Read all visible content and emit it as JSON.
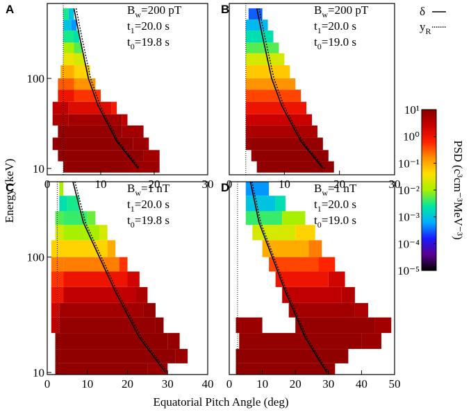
{
  "chart_data": [
    {
      "type": "heatmap",
      "label": "A",
      "annotation": [
        {
          "base": "B",
          "sub": "w",
          "rest": "=200 pT"
        },
        {
          "base": "t",
          "sub": "1",
          "rest": "=20.0 s"
        },
        {
          "base": "t",
          "sub": "0",
          "rest": "=19.8 s"
        }
      ],
      "xlim": [
        0,
        30
      ],
      "xticks": [
        0,
        10,
        20,
        30
      ],
      "ylim": [
        8.5,
        680
      ],
      "yscale": "log",
      "yticks": [
        10,
        100
      ],
      "loss_cone": 3,
      "rows": [
        [
          450,
          600,
          [
            [
              3,
              4,
              0.003
            ],
            [
              4,
              5,
              0.001
            ]
          ]
        ],
        [
          340,
          450,
          [
            [
              3,
              4.5,
              0.001
            ],
            [
              4.5,
              5.5,
              0.0005
            ]
          ]
        ],
        [
          250,
          340,
          [
            [
              3,
              5,
              0.003
            ],
            [
              5,
              6,
              0.002
            ]
          ]
        ],
        [
          190,
          250,
          [
            [
              3,
              5,
              0.01
            ],
            [
              5,
              6.5,
              0.005
            ]
          ]
        ],
        [
          140,
          190,
          [
            [
              3,
              5,
              0.03
            ],
            [
              5,
              7,
              0.02
            ]
          ]
        ],
        [
          100,
          140,
          [
            [
              2.5,
              5,
              0.1
            ],
            [
              5,
              8,
              0.05
            ]
          ]
        ],
        [
          75,
          100,
          [
            [
              2,
              5,
              0.3
            ],
            [
              5,
              9,
              0.15
            ]
          ]
        ],
        [
          55,
          75,
          [
            [
              2,
              5,
              1
            ],
            [
              5,
              10,
              0.5
            ]
          ]
        ],
        [
          40,
          55,
          [
            [
              1,
              4,
              3
            ],
            [
              4,
              12,
              1.5
            ],
            [
              12,
              13,
              0.8
            ]
          ]
        ],
        [
          30,
          40,
          [
            [
              1,
              4,
              5
            ],
            [
              4,
              14,
              6
            ],
            [
              14,
              15,
              3
            ]
          ]
        ],
        [
          22,
          30,
          [
            [
              2,
              14,
              8
            ],
            [
              14,
              18,
              6
            ]
          ]
        ],
        [
          16,
          22,
          [
            [
              1,
              16,
              9
            ],
            [
              16,
              19,
              7
            ]
          ]
        ],
        [
          12,
          16,
          [
            [
              2,
              18,
              9
            ],
            [
              18,
              21,
              6
            ]
          ]
        ],
        [
          9,
          12,
          [
            [
              3,
              15,
              9
            ],
            [
              15,
              21,
              7
            ]
          ]
        ]
      ],
      "curves": [
        {
          "style": "solid",
          "x": [
            5,
            6,
            7.7,
            9.5,
            13,
            17
          ],
          "y": [
            600,
            300,
            100,
            50,
            20,
            10
          ]
        },
        {
          "style": "dotted",
          "x": [
            5.4,
            6.4,
            8.1,
            9.9,
            13.3,
            17.3
          ],
          "y": [
            600,
            300,
            100,
            50,
            20,
            10
          ]
        }
      ]
    },
    {
      "type": "heatmap",
      "label": "B",
      "annotation": [
        {
          "base": "B",
          "sub": "w",
          "rest": "=200 pT"
        },
        {
          "base": "t",
          "sub": "1",
          "rest": "=20.0 s"
        },
        {
          "base": "t",
          "sub": "0",
          "rest": "=19.0 s"
        }
      ],
      "xlim": [
        0,
        30
      ],
      "xticks": [
        0,
        10,
        20,
        30
      ],
      "ylim": [
        8.5,
        680
      ],
      "yscale": "log",
      "loss_cone": 3,
      "rows": [
        [
          450,
          600,
          [
            [
              3.5,
              6,
              0.0003
            ]
          ]
        ],
        [
          340,
          450,
          [
            [
              3,
              7,
              0.0008
            ]
          ]
        ],
        [
          250,
          340,
          [
            [
              3,
              8,
              0.002
            ]
          ]
        ],
        [
          190,
          250,
          [
            [
              3,
              9,
              0.005
            ]
          ]
        ],
        [
          140,
          190,
          [
            [
              3,
              10,
              0.02
            ]
          ]
        ],
        [
          100,
          140,
          [
            [
              3,
              11,
              0.06
            ]
          ]
        ],
        [
          75,
          100,
          [
            [
              3,
              12,
              0.15
            ]
          ]
        ],
        [
          55,
          75,
          [
            [
              3,
              13,
              0.4
            ]
          ]
        ],
        [
          40,
          55,
          [
            [
              3,
              14,
              1
            ]
          ]
        ],
        [
          30,
          40,
          [
            [
              3,
              15,
              2.5
            ]
          ]
        ],
        [
          22,
          30,
          [
            [
              3,
              16,
              5
            ]
          ]
        ],
        [
          16,
          22,
          [
            [
              3,
              17,
              8
            ]
          ]
        ],
        [
          12,
          16,
          [
            [
              4,
              18,
              9
            ]
          ]
        ],
        [
          9,
          12,
          [
            [
              5,
              19,
              9
            ]
          ]
        ]
      ],
      "curves": [
        {
          "style": "solid",
          "x": [
            5,
            6,
            7.7,
            9.5,
            13,
            17
          ],
          "y": [
            600,
            300,
            100,
            50,
            20,
            10
          ]
        },
        {
          "style": "dotted",
          "x": [
            5.4,
            6.4,
            8.1,
            9.9,
            13.3,
            17.3
          ],
          "y": [
            600,
            300,
            100,
            50,
            20,
            10
          ]
        }
      ]
    },
    {
      "type": "heatmap",
      "label": "C",
      "annotation": [
        {
          "base": "B",
          "sub": "w",
          "rest": "=1 nT"
        },
        {
          "base": "t",
          "sub": "1",
          "rest": "=20.0 s"
        },
        {
          "base": "t",
          "sub": "0",
          "rest": "=19.8 s"
        }
      ],
      "xlim": [
        0,
        40
      ],
      "xticks": [
        0,
        10,
        20,
        30,
        40
      ],
      "ylim": [
        9.6,
        450
      ],
      "yscale": "log",
      "yticks": [
        10,
        100
      ],
      "loss_cone": 2.5,
      "rows": [
        [
          340,
          450,
          [
            [
              3,
              4,
              0.01
            ]
          ]
        ],
        [
          250,
          340,
          [
            [
              3,
              5,
              0.002
            ],
            [
              5,
              8,
              0.003
            ]
          ]
        ],
        [
          190,
          250,
          [
            [
              2,
              4,
              0.005
            ],
            [
              4,
              10,
              0.004
            ],
            [
              10,
              12,
              0.006
            ]
          ]
        ],
        [
          140,
          190,
          [
            [
              2,
              4,
              0.02
            ],
            [
              4,
              13,
              0.01
            ],
            [
              13,
              15,
              0.02
            ]
          ]
        ],
        [
          100,
          140,
          [
            [
              1,
              3,
              0.05
            ],
            [
              3,
              15,
              0.05
            ],
            [
              15,
              17,
              0.1
            ]
          ]
        ],
        [
          75,
          100,
          [
            [
              1,
              4,
              0.2
            ],
            [
              4,
              18,
              0.2
            ],
            [
              18,
              20,
              0.5
            ]
          ]
        ],
        [
          55,
          75,
          [
            [
              1,
              4,
              0.5
            ],
            [
              4,
              20,
              1
            ],
            [
              20,
              23,
              2
            ]
          ]
        ],
        [
          40,
          55,
          [
            [
              1,
              4,
              1
            ],
            [
              4,
              22,
              3
            ],
            [
              22,
              25,
              5
            ]
          ]
        ],
        [
          30,
          40,
          [
            [
              1,
              3,
              2
            ],
            [
              3,
              24,
              6
            ],
            [
              24,
              27,
              8
            ]
          ]
        ],
        [
          22,
          30,
          [
            [
              1,
              3,
              3
            ],
            [
              3,
              27,
              8
            ],
            [
              27,
              29,
              9
            ]
          ]
        ],
        [
          16,
          22,
          [
            [
              2,
              30,
              9
            ],
            [
              30,
              33,
              8
            ]
          ]
        ],
        [
          12,
          16,
          [
            [
              2,
              32,
              9
            ],
            [
              32,
              35,
              7
            ]
          ]
        ],
        [
          9.6,
          12,
          [
            [
              2,
              25,
              9
            ],
            [
              25,
              30,
              7
            ]
          ]
        ]
      ],
      "curves": [
        {
          "style": "solid",
          "x": [
            6.4,
            9,
            13,
            17,
            23,
            29.5
          ],
          "y": [
            450,
            200,
            100,
            50,
            20,
            10
          ]
        },
        {
          "style": "dotted",
          "x": [
            6.9,
            9.5,
            13.5,
            17.5,
            23.5,
            30
          ],
          "y": [
            450,
            200,
            100,
            50,
            20,
            10
          ]
        }
      ]
    },
    {
      "type": "heatmap",
      "label": "D",
      "annotation": [
        {
          "base": "B",
          "sub": "w",
          "rest": "=1 nT"
        },
        {
          "base": "t",
          "sub": "1",
          "rest": "=20.0 s"
        },
        {
          "base": "t",
          "sub": "0",
          "rest": "=19.0 s"
        }
      ],
      "xlim": [
        0,
        50
      ],
      "xticks": [
        0,
        10,
        20,
        30,
        40,
        50
      ],
      "ylim": [
        9.6,
        450
      ],
      "yscale": "log",
      "loss_cone": 2.5,
      "rows": [
        [
          340,
          450,
          [
            [
              5,
              12,
              0.0005
            ]
          ]
        ],
        [
          250,
          340,
          [
            [
              5,
              14,
              0.001
            ],
            [
              14,
              17,
              0.002
            ]
          ]
        ],
        [
          190,
          250,
          [
            [
              5,
              16,
              0.004
            ],
            [
              16,
              23,
              0.01
            ]
          ]
        ],
        [
          140,
          190,
          [
            [
              7,
              20,
              0.02
            ],
            [
              20,
              26,
              0.05
            ]
          ]
        ],
        [
          100,
          140,
          [
            [
              10,
              24,
              0.1
            ],
            [
              24,
              28,
              0.2
            ]
          ]
        ],
        [
          75,
          100,
          [
            [
              12,
              27,
              0.4
            ],
            [
              27,
              32,
              0.6
            ]
          ]
        ],
        [
          55,
          75,
          [
            [
              14,
              30,
              1
            ],
            [
              30,
              35,
              2
            ]
          ]
        ],
        [
          40,
          55,
          [
            [
              16,
              34,
              3
            ],
            [
              34,
              38,
              4
            ]
          ]
        ],
        [
          30,
          40,
          [
            [
              18,
              38,
              6
            ],
            [
              38,
              42,
              5
            ]
          ]
        ],
        [
          22,
          30,
          [
            [
              2,
              10,
              7
            ],
            [
              20,
              44,
              8
            ],
            [
              44,
              49,
              6
            ]
          ]
        ],
        [
          16,
          22,
          [
            [
              3,
              40,
              8
            ],
            [
              40,
              46,
              7
            ]
          ]
        ],
        [
          12,
          16,
          [
            [
              2,
              36,
              9
            ]
          ]
        ],
        [
          9.6,
          12,
          [
            [
              2,
              32,
              9
            ]
          ]
        ]
      ],
      "curves": [
        {
          "style": "solid",
          "x": [
            6.4,
            9,
            13,
            17,
            23,
            29.5
          ],
          "y": [
            450,
            200,
            100,
            50,
            20,
            10
          ]
        },
        {
          "style": "dotted",
          "x": [
            6.9,
            9.5,
            13.5,
            17.5,
            23.5,
            30
          ],
          "y": [
            450,
            200,
            100,
            50,
            20,
            10
          ]
        }
      ]
    }
  ],
  "xlabel": "Equatorial Pitch Angle (deg)",
  "ylabel": "Energy (keV)",
  "legend": [
    {
      "base": "δ",
      "style": "solid"
    },
    {
      "base": "y",
      "sub": "R",
      "style": "dotted"
    }
  ],
  "colorbar": {
    "label": "PSD (c³cm⁻³MeV⁻³)",
    "scale": "log",
    "clim": [
      1e-05,
      10
    ],
    "colors": [
      "#000000",
      "#5a0090",
      "#1a1aff",
      "#00b0ff",
      "#00e8a0",
      "#a8f000",
      "#ffe000",
      "#ff9000",
      "#ff2000",
      "#c80000",
      "#8b0000"
    ],
    "ticks": [
      {
        "value": 10,
        "label": "10¹"
      },
      {
        "value": 1,
        "label": "10⁰"
      },
      {
        "value": 0.1,
        "label": "10⁻¹"
      },
      {
        "value": 0.01,
        "label": "10⁻²"
      },
      {
        "value": 0.001,
        "label": "10⁻³"
      },
      {
        "value": 0.0001,
        "label": "10⁻⁴"
      },
      {
        "value": 1e-05,
        "label": "10⁻⁵"
      }
    ]
  }
}
